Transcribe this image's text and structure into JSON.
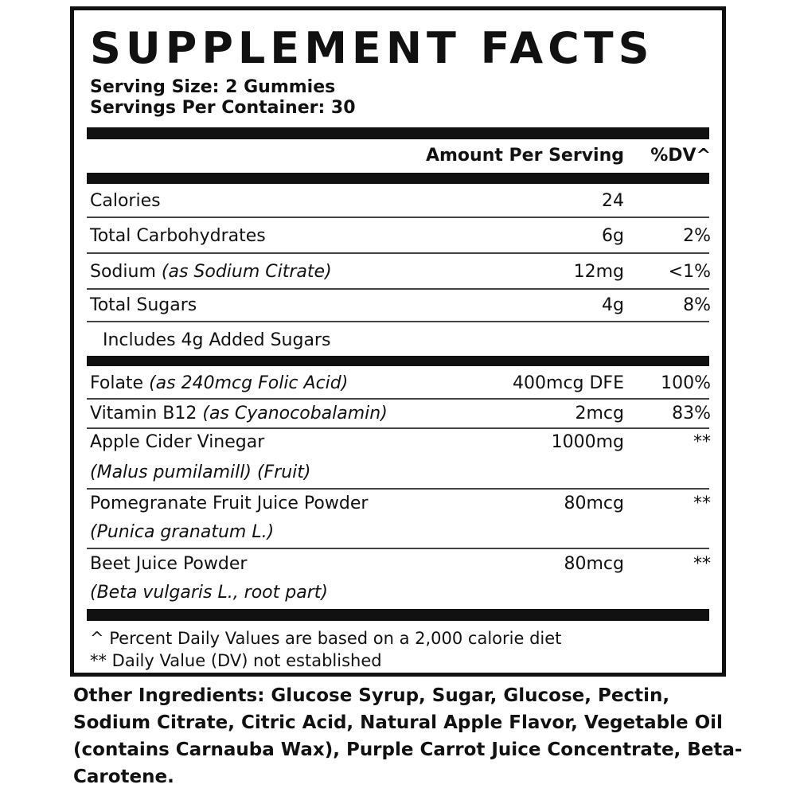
{
  "title": "SUPPLEMENT FACTS",
  "serving_size": "Serving Size: 2 Gummies",
  "servings_per_container": "Servings Per Container: 30",
  "header": {
    "amount": "Amount Per Serving",
    "dv": "%DV^"
  },
  "rows": [
    {
      "name": "Calories",
      "amount": "24",
      "dv": ""
    },
    {
      "name": "Total Carbohydrates",
      "amount": "6g",
      "dv": "2%"
    },
    {
      "name": "Sodium",
      "sub": "(as Sodium Citrate)",
      "amount": "12mg",
      "dv": "<1%"
    },
    {
      "name": "Total Sugars",
      "amount": "4g",
      "dv": "8%"
    },
    {
      "name": "Includes 4g Added Sugars"
    },
    {
      "name": "Folate",
      "sub": "(as 240mcg Folic Acid)",
      "amount": "400mcg DFE",
      "dv": "100%"
    },
    {
      "name": "Vitamin B12",
      "sub": "(as Cyanocobalamin)",
      "amount": "2mcg",
      "dv": "83%"
    },
    {
      "name": "Apple Cider Vinegar",
      "sub": "(Malus pumilamill) (Fruit)",
      "amount": "1000mg",
      "dv": "**"
    },
    {
      "name": "Pomegranate Fruit Juice Powder",
      "sub": "(Punica granatum L.)",
      "amount": "80mcg",
      "dv": "**"
    },
    {
      "name": "Beet Juice Powder",
      "sub": "(Beta vulgaris L., root part)",
      "amount": "80mcg",
      "dv": "**"
    }
  ],
  "footnotes": [
    "^ Percent Daily Values are based on a 2,000 calorie diet",
    "** Daily Value (DV) not established"
  ],
  "other_ingredients": {
    "label": "Other Ingredients:",
    "text": " Glucose Syrup, Sugar, Glucose, Pectin, Sodium Citrate, Citric Acid, Natural Apple Flavor, Vegetable Oil (contains Carnauba Wax), Purple Carrot Juice Concentrate, Beta-Carotene."
  }
}
